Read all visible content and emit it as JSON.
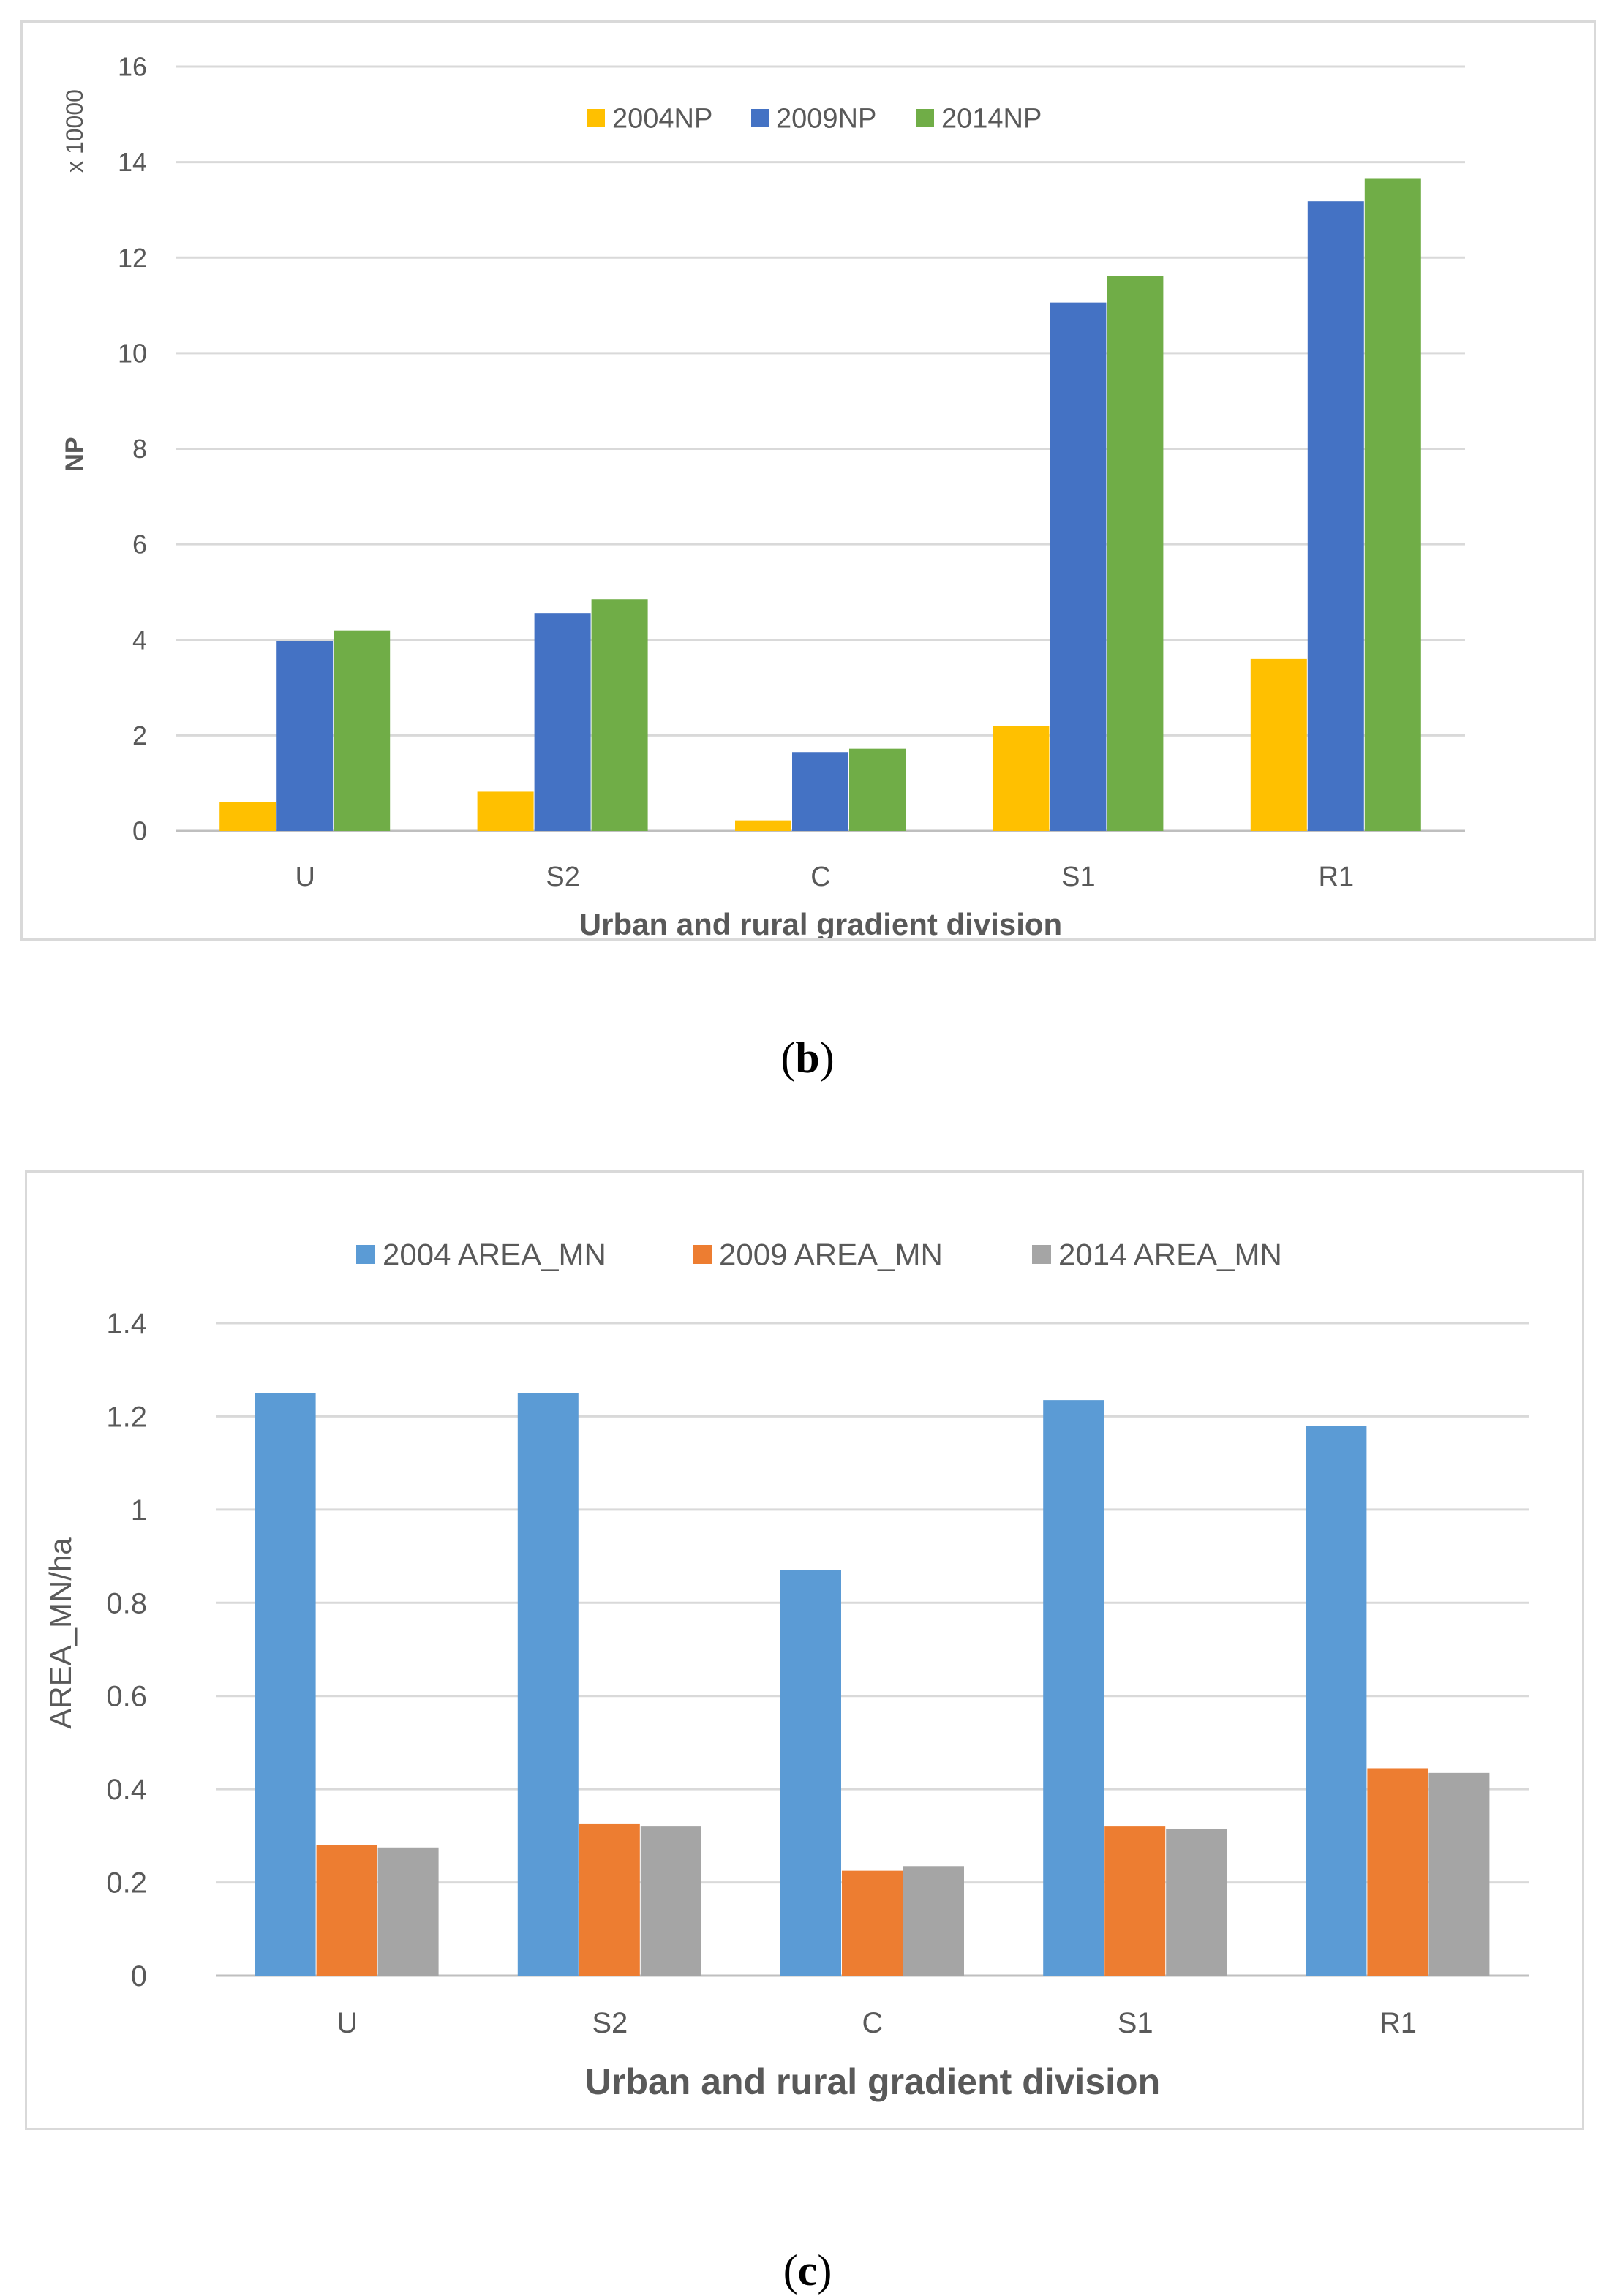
{
  "captions": {
    "b": "b",
    "c": "c"
  },
  "chart_data": [
    {
      "id": "b",
      "type": "bar",
      "categories": [
        "U",
        "S2",
        "C",
        "S1",
        "R1"
      ],
      "series": [
        {
          "name": "2004NP",
          "color": "#FFC000",
          "values": [
            0.6,
            0.82,
            0.22,
            2.2,
            3.6
          ]
        },
        {
          "name": "2009NP",
          "color": "#4472C4",
          "values": [
            3.98,
            4.56,
            1.65,
            11.06,
            13.18
          ]
        },
        {
          "name": "2014NP",
          "color": "#70AD47",
          "values": [
            4.2,
            4.85,
            1.72,
            11.62,
            13.65
          ]
        }
      ],
      "title": "",
      "xlabel": "Urban and rural gradient division",
      "ylabel": "NP",
      "yunit": "x 10000",
      "ylim": [
        0,
        16
      ],
      "yticks": [
        0,
        2,
        4,
        6,
        8,
        10,
        12,
        14,
        16
      ],
      "ytick_labels": [
        "0",
        "2",
        "4",
        "6",
        "8",
        "10",
        "12",
        "14",
        "16"
      ],
      "grid": true,
      "legend": "top"
    },
    {
      "id": "c",
      "type": "bar",
      "categories": [
        "U",
        "S2",
        "C",
        "S1",
        "R1"
      ],
      "series": [
        {
          "name": "2004 AREA_MN",
          "color": "#5B9BD5",
          "values": [
            1.25,
            1.25,
            0.87,
            1.235,
            1.18
          ]
        },
        {
          "name": "2009 AREA_MN",
          "color": "#ED7D31",
          "values": [
            0.28,
            0.325,
            0.225,
            0.32,
            0.445
          ]
        },
        {
          "name": "2014 AREA_MN",
          "color": "#A5A5A5",
          "values": [
            0.275,
            0.32,
            0.235,
            0.315,
            0.435
          ]
        }
      ],
      "title": "",
      "xlabel": "Urban and rural gradient division",
      "ylabel": "AREA_MN/ha",
      "ylim": [
        0,
        1.4
      ],
      "yticks": [
        0,
        0.2,
        0.4,
        0.6,
        0.8,
        1,
        1.2,
        1.4
      ],
      "ytick_labels": [
        "0",
        "0.2",
        "0.4",
        "0.6",
        "0.8",
        "1",
        "1.2",
        "1.4"
      ],
      "grid": true,
      "legend": "top"
    }
  ]
}
